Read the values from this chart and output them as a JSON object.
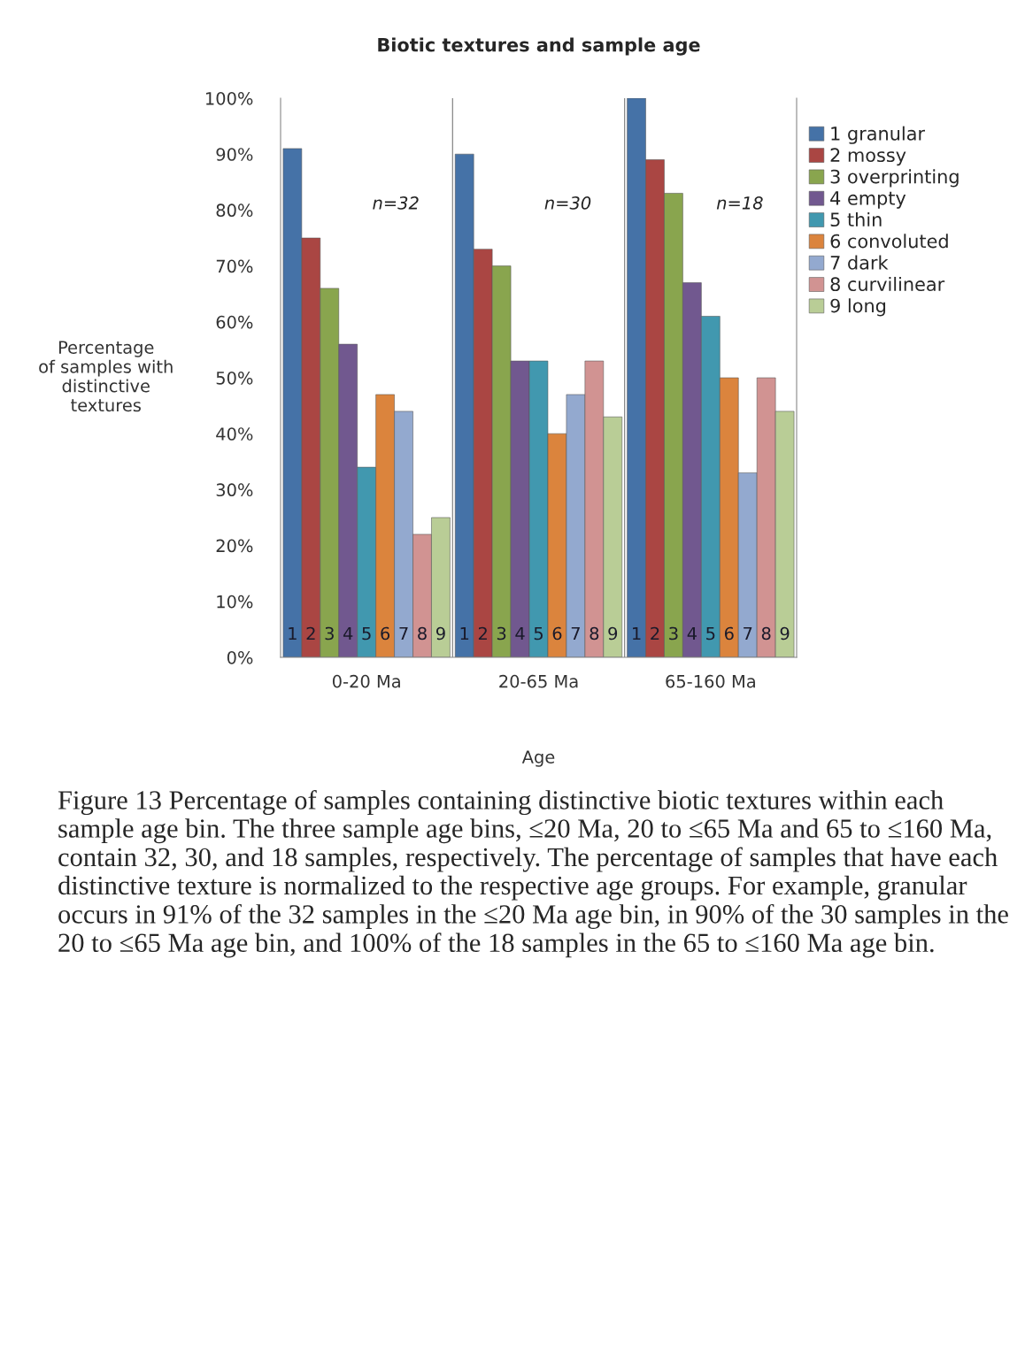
{
  "chart_data": {
    "type": "bar",
    "title": "Biotic textures and sample age",
    "xlabel": "Age",
    "ylabel": "Percentage\nof samples with\ndistinctive\ntextures",
    "categories": [
      "0-20 Ma",
      "20-65 Ma",
      "65-160 Ma"
    ],
    "series": [
      {
        "name": "1 granular",
        "color": "#4572a7",
        "values": [
          91,
          90,
          100
        ]
      },
      {
        "name": "2 mossy",
        "color": "#aa4643",
        "values": [
          75,
          73,
          89
        ]
      },
      {
        "name": "3 overprinting",
        "color": "#89a54e",
        "values": [
          66,
          70,
          83
        ]
      },
      {
        "name": "4 empty",
        "color": "#71588f",
        "values": [
          56,
          53,
          67
        ]
      },
      {
        "name": "5 thin",
        "color": "#4198af",
        "values": [
          34,
          53,
          61
        ]
      },
      {
        "name": "6 convoluted",
        "color": "#db843d",
        "values": [
          47,
          40,
          50
        ]
      },
      {
        "name": "7 dark",
        "color": "#93a9cf",
        "values": [
          44,
          47,
          33
        ]
      },
      {
        "name": "8 curvilinear",
        "color": "#d19392",
        "values": [
          22,
          53,
          50
        ]
      },
      {
        "name": "9 long",
        "color": "#b9cd96",
        "values": [
          25,
          43,
          44
        ]
      }
    ],
    "ylim": [
      0,
      100
    ],
    "yticks": [
      {
        "value": 0,
        "label": "0%"
      },
      {
        "value": 10,
        "label": "10%"
      },
      {
        "value": 20,
        "label": "20%"
      },
      {
        "value": 30,
        "label": "30%"
      },
      {
        "value": 40,
        "label": "40%"
      },
      {
        "value": 50,
        "label": "50%"
      },
      {
        "value": 60,
        "label": "60%"
      },
      {
        "value": 70,
        "label": "70%"
      },
      {
        "value": 80,
        "label": "80%"
      },
      {
        "value": 90,
        "label": "90%"
      },
      {
        "value": 100,
        "label": "100%"
      }
    ],
    "legend": "right",
    "annotations": [
      "n=32",
      "n=30",
      "n=18",
      "1",
      "2",
      "3",
      "4",
      "5",
      "6",
      "7",
      "8",
      "9",
      "1",
      "2",
      "3",
      "4",
      "5",
      "6",
      "7",
      "8",
      "9",
      "1",
      "2",
      "3",
      "4",
      "5",
      "6",
      "7",
      "8",
      "9",
      "Figure 13 Percentage of samples containing distinctive biotic textures within each sample age bin. The three sample age bins, ≤20 Ma, 20 to ≤65 Ma and 65 to ≤160 Ma, contain 32, 30, and 18 samples, respectively. The percentage of samples that have each distinctive texture is normalized to the respective age groups. For example, granular occurs in 91% of the 32 samples in the ≤20 Ma age bin, in 90% of the 30 samples in the 20 to ≤65 Ma age bin, and 100% of the 18 samples in the 65 to ≤160 Ma age bin."
    ]
  }
}
